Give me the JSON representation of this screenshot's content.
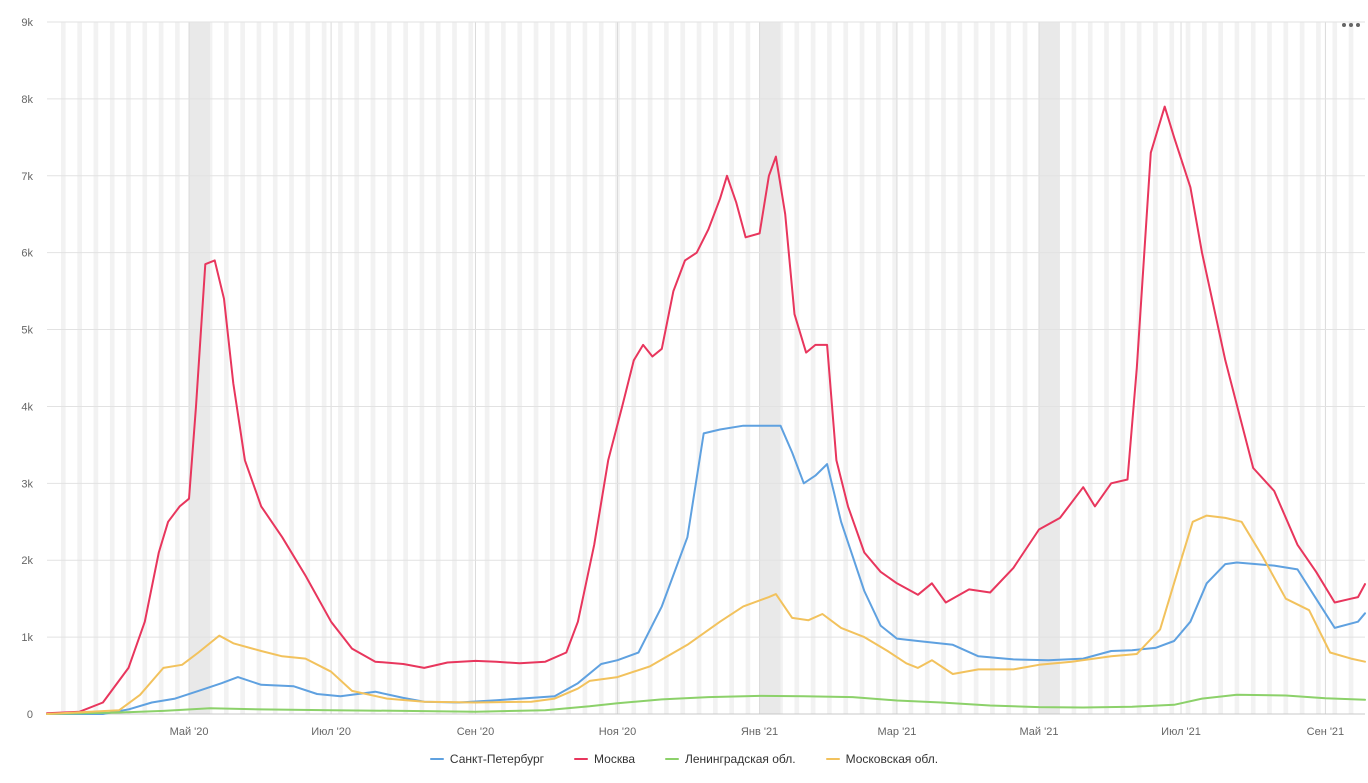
{
  "chart_data": {
    "type": "line",
    "title": "",
    "xlabel": "",
    "ylabel": "",
    "ylim": [
      0,
      9000
    ],
    "xlim": [
      "2020-03-01",
      "2021-09-18"
    ],
    "y_ticks": [
      {
        "value": 0,
        "label": "0"
      },
      {
        "value": 1000,
        "label": "1k"
      },
      {
        "value": 2000,
        "label": "2k"
      },
      {
        "value": 3000,
        "label": "3k"
      },
      {
        "value": 4000,
        "label": "4k"
      },
      {
        "value": 5000,
        "label": "5k"
      },
      {
        "value": 6000,
        "label": "6k"
      },
      {
        "value": 7000,
        "label": "7k"
      },
      {
        "value": 8000,
        "label": "8k"
      },
      {
        "value": 9000,
        "label": "9k"
      }
    ],
    "x_ticks": [
      {
        "date": "2020-05-01",
        "label": "Май '20"
      },
      {
        "date": "2020-07-01",
        "label": "Июл '20"
      },
      {
        "date": "2020-09-01",
        "label": "Сен '20"
      },
      {
        "date": "2020-11-01",
        "label": "Ноя '20"
      },
      {
        "date": "2021-01-01",
        "label": "Янв '21"
      },
      {
        "date": "2021-03-01",
        "label": "Мар '21"
      },
      {
        "date": "2021-05-01",
        "label": "Май '21"
      },
      {
        "date": "2021-07-01",
        "label": "Июл '21"
      },
      {
        "date": "2021-09-01",
        "label": "Сен '21"
      }
    ],
    "grid": true,
    "legend": "bottom",
    "highlight_bands": [
      {
        "from": "2020-05-01",
        "to": "2020-05-10"
      },
      {
        "from": "2021-01-01",
        "to": "2021-01-10"
      },
      {
        "from": "2021-05-01",
        "to": "2021-05-10"
      }
    ],
    "series": [
      {
        "name": "Санкт-Петербург",
        "color": "#5fa1e0",
        "points": [
          [
            "2020-03-01",
            0
          ],
          [
            "2020-03-25",
            0
          ],
          [
            "2020-04-05",
            60
          ],
          [
            "2020-04-15",
            150
          ],
          [
            "2020-04-25",
            200
          ],
          [
            "2020-05-05",
            300
          ],
          [
            "2020-05-15",
            400
          ],
          [
            "2020-05-22",
            480
          ],
          [
            "2020-06-01",
            380
          ],
          [
            "2020-06-15",
            360
          ],
          [
            "2020-06-25",
            260
          ],
          [
            "2020-07-05",
            230
          ],
          [
            "2020-07-20",
            290
          ],
          [
            "2020-08-01",
            210
          ],
          [
            "2020-08-10",
            160
          ],
          [
            "2020-08-25",
            150
          ],
          [
            "2020-09-10",
            180
          ],
          [
            "2020-09-25",
            210
          ],
          [
            "2020-10-05",
            230
          ],
          [
            "2020-10-15",
            400
          ],
          [
            "2020-10-25",
            650
          ],
          [
            "2020-11-01",
            700
          ],
          [
            "2020-11-10",
            800
          ],
          [
            "2020-11-20",
            1400
          ],
          [
            "2020-12-01",
            2300
          ],
          [
            "2020-12-08",
            3650
          ],
          [
            "2020-12-15",
            3700
          ],
          [
            "2020-12-25",
            3750
          ],
          [
            "2021-01-10",
            3750
          ],
          [
            "2021-01-15",
            3400
          ],
          [
            "2021-01-20",
            3000
          ],
          [
            "2021-01-25",
            3100
          ],
          [
            "2021-01-30",
            3250
          ],
          [
            "2021-02-05",
            2500
          ],
          [
            "2021-02-15",
            1600
          ],
          [
            "2021-02-22",
            1150
          ],
          [
            "2021-03-01",
            980
          ],
          [
            "2021-03-10",
            950
          ],
          [
            "2021-03-25",
            900
          ],
          [
            "2021-04-05",
            750
          ],
          [
            "2021-04-20",
            710
          ],
          [
            "2021-05-05",
            700
          ],
          [
            "2021-05-20",
            720
          ],
          [
            "2021-06-01",
            820
          ],
          [
            "2021-06-10",
            830
          ],
          [
            "2021-06-20",
            860
          ],
          [
            "2021-06-28",
            950
          ],
          [
            "2021-07-05",
            1200
          ],
          [
            "2021-07-12",
            1700
          ],
          [
            "2021-07-20",
            1950
          ],
          [
            "2021-07-25",
            1970
          ],
          [
            "2021-08-10",
            1930
          ],
          [
            "2021-08-20",
            1880
          ],
          [
            "2021-08-28",
            1500
          ],
          [
            "2021-09-05",
            1120
          ],
          [
            "2021-09-15",
            1200
          ],
          [
            "2021-09-18",
            1310
          ]
        ]
      },
      {
        "name": "Москва",
        "color": "#e8365d",
        "points": [
          [
            "2020-03-01",
            10
          ],
          [
            "2020-03-15",
            30
          ],
          [
            "2020-03-25",
            150
          ],
          [
            "2020-04-05",
            600
          ],
          [
            "2020-04-12",
            1200
          ],
          [
            "2020-04-18",
            2100
          ],
          [
            "2020-04-22",
            2500
          ],
          [
            "2020-04-27",
            2700
          ],
          [
            "2020-05-01",
            2800
          ],
          [
            "2020-05-04",
            4000
          ],
          [
            "2020-05-08",
            5850
          ],
          [
            "2020-05-12",
            5900
          ],
          [
            "2020-05-16",
            5400
          ],
          [
            "2020-05-20",
            4300
          ],
          [
            "2020-05-25",
            3300
          ],
          [
            "2020-06-01",
            2700
          ],
          [
            "2020-06-10",
            2300
          ],
          [
            "2020-06-20",
            1800
          ],
          [
            "2020-07-01",
            1200
          ],
          [
            "2020-07-10",
            850
          ],
          [
            "2020-07-20",
            680
          ],
          [
            "2020-08-01",
            650
          ],
          [
            "2020-08-10",
            600
          ],
          [
            "2020-08-20",
            670
          ],
          [
            "2020-09-01",
            690
          ],
          [
            "2020-09-10",
            680
          ],
          [
            "2020-09-20",
            660
          ],
          [
            "2020-10-01",
            680
          ],
          [
            "2020-10-10",
            800
          ],
          [
            "2020-10-15",
            1200
          ],
          [
            "2020-10-22",
            2200
          ],
          [
            "2020-10-28",
            3300
          ],
          [
            "2020-11-03",
            4000
          ],
          [
            "2020-11-08",
            4600
          ],
          [
            "2020-11-12",
            4800
          ],
          [
            "2020-11-16",
            4650
          ],
          [
            "2020-11-20",
            4750
          ],
          [
            "2020-11-25",
            5500
          ],
          [
            "2020-11-30",
            5900
          ],
          [
            "2020-12-05",
            6000
          ],
          [
            "2020-12-10",
            6300
          ],
          [
            "2020-12-15",
            6700
          ],
          [
            "2020-12-18",
            7000
          ],
          [
            "2020-12-22",
            6650
          ],
          [
            "2020-12-26",
            6200
          ],
          [
            "2021-01-01",
            6250
          ],
          [
            "2021-01-05",
            7000
          ],
          [
            "2021-01-08",
            7250
          ],
          [
            "2021-01-12",
            6500
          ],
          [
            "2021-01-16",
            5200
          ],
          [
            "2021-01-21",
            4700
          ],
          [
            "2021-01-25",
            4800
          ],
          [
            "2021-01-30",
            4800
          ],
          [
            "2021-02-03",
            3300
          ],
          [
            "2021-02-08",
            2700
          ],
          [
            "2021-02-15",
            2100
          ],
          [
            "2021-02-22",
            1850
          ],
          [
            "2021-03-01",
            1700
          ],
          [
            "2021-03-10",
            1550
          ],
          [
            "2021-03-16",
            1700
          ],
          [
            "2021-03-22",
            1450
          ],
          [
            "2021-04-01",
            1620
          ],
          [
            "2021-04-10",
            1580
          ],
          [
            "2021-04-20",
            1900
          ],
          [
            "2021-05-01",
            2400
          ],
          [
            "2021-05-10",
            2550
          ],
          [
            "2021-05-20",
            2950
          ],
          [
            "2021-05-25",
            2700
          ],
          [
            "2021-06-01",
            3000
          ],
          [
            "2021-06-08",
            3050
          ],
          [
            "2021-06-12",
            4500
          ],
          [
            "2021-06-18",
            7300
          ],
          [
            "2021-06-24",
            7900
          ],
          [
            "2021-06-28",
            7500
          ],
          [
            "2021-07-05",
            6850
          ],
          [
            "2021-07-10",
            6000
          ],
          [
            "2021-07-20",
            4600
          ],
          [
            "2021-08-01",
            3200
          ],
          [
            "2021-08-10",
            2900
          ],
          [
            "2021-08-20",
            2200
          ],
          [
            "2021-08-28",
            1850
          ],
          [
            "2021-09-05",
            1450
          ],
          [
            "2021-09-12",
            1500
          ],
          [
            "2021-09-15",
            1520
          ],
          [
            "2021-09-18",
            1690
          ]
        ]
      },
      {
        "name": "Ленинградская обл.",
        "color": "#8cd16a",
        "points": [
          [
            "2020-03-01",
            0
          ],
          [
            "2020-04-01",
            20
          ],
          [
            "2020-04-20",
            40
          ],
          [
            "2020-05-10",
            75
          ],
          [
            "2020-06-01",
            60
          ],
          [
            "2020-07-01",
            50
          ],
          [
            "2020-08-01",
            40
          ],
          [
            "2020-09-01",
            30
          ],
          [
            "2020-10-01",
            50
          ],
          [
            "2020-10-20",
            100
          ],
          [
            "2020-11-01",
            140
          ],
          [
            "2020-11-20",
            190
          ],
          [
            "2020-12-10",
            220
          ],
          [
            "2021-01-01",
            235
          ],
          [
            "2021-01-20",
            230
          ],
          [
            "2021-02-10",
            220
          ],
          [
            "2021-03-01",
            175
          ],
          [
            "2021-03-20",
            150
          ],
          [
            "2021-04-10",
            110
          ],
          [
            "2021-05-01",
            90
          ],
          [
            "2021-05-20",
            85
          ],
          [
            "2021-06-10",
            95
          ],
          [
            "2021-06-28",
            120
          ],
          [
            "2021-07-10",
            200
          ],
          [
            "2021-07-25",
            250
          ],
          [
            "2021-08-15",
            240
          ],
          [
            "2021-09-01",
            205
          ],
          [
            "2021-09-18",
            185
          ]
        ]
      },
      {
        "name": "Московская обл.",
        "color": "#f2c25d",
        "points": [
          [
            "2020-03-01",
            0
          ],
          [
            "2020-04-01",
            50
          ],
          [
            "2020-04-10",
            250
          ],
          [
            "2020-04-20",
            600
          ],
          [
            "2020-04-28",
            640
          ],
          [
            "2020-05-05",
            800
          ],
          [
            "2020-05-14",
            1020
          ],
          [
            "2020-05-20",
            920
          ],
          [
            "2020-06-01",
            820
          ],
          [
            "2020-06-10",
            750
          ],
          [
            "2020-06-20",
            720
          ],
          [
            "2020-07-01",
            550
          ],
          [
            "2020-07-10",
            300
          ],
          [
            "2020-07-25",
            200
          ],
          [
            "2020-08-10",
            160
          ],
          [
            "2020-09-01",
            150
          ],
          [
            "2020-09-25",
            160
          ],
          [
            "2020-10-05",
            200
          ],
          [
            "2020-10-15",
            330
          ],
          [
            "2020-10-20",
            430
          ],
          [
            "2020-11-01",
            480
          ],
          [
            "2020-11-15",
            620
          ],
          [
            "2020-12-01",
            900
          ],
          [
            "2020-12-15",
            1200
          ],
          [
            "2020-12-25",
            1400
          ],
          [
            "2021-01-05",
            1520
          ],
          [
            "2021-01-08",
            1560
          ],
          [
            "2021-01-15",
            1250
          ],
          [
            "2021-01-22",
            1220
          ],
          [
            "2021-01-28",
            1300
          ],
          [
            "2021-02-05",
            1120
          ],
          [
            "2021-02-15",
            1000
          ],
          [
            "2021-02-25",
            820
          ],
          [
            "2021-03-05",
            660
          ],
          [
            "2021-03-10",
            600
          ],
          [
            "2021-03-16",
            700
          ],
          [
            "2021-03-25",
            520
          ],
          [
            "2021-04-05",
            580
          ],
          [
            "2021-04-20",
            580
          ],
          [
            "2021-05-01",
            640
          ],
          [
            "2021-05-15",
            680
          ],
          [
            "2021-06-01",
            750
          ],
          [
            "2021-06-12",
            780
          ],
          [
            "2021-06-22",
            1100
          ],
          [
            "2021-07-01",
            2000
          ],
          [
            "2021-07-06",
            2500
          ],
          [
            "2021-07-12",
            2580
          ],
          [
            "2021-07-20",
            2550
          ],
          [
            "2021-07-27",
            2500
          ],
          [
            "2021-08-05",
            2050
          ],
          [
            "2021-08-15",
            1500
          ],
          [
            "2021-08-25",
            1350
          ],
          [
            "2021-09-03",
            800
          ],
          [
            "2021-09-12",
            720
          ],
          [
            "2021-09-18",
            680
          ]
        ]
      }
    ]
  }
}
